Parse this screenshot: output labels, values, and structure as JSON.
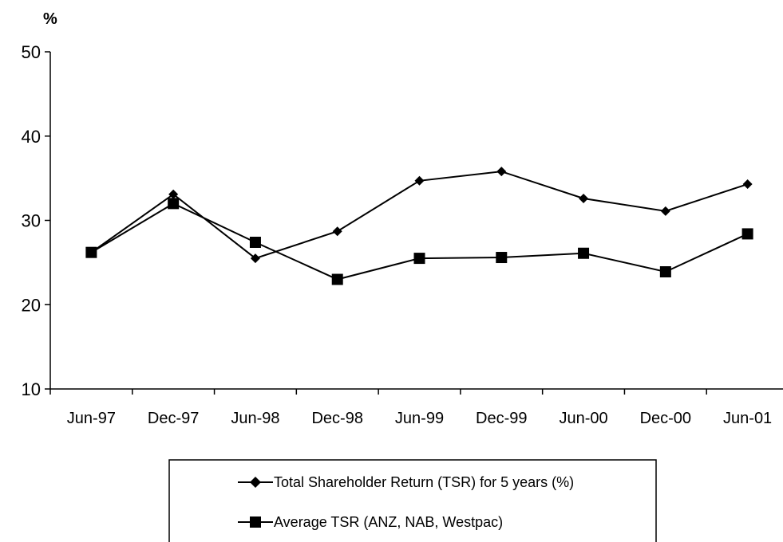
{
  "chart_data": {
    "type": "line",
    "y_unit_label": "%",
    "categories": [
      "Jun-97",
      "Dec-97",
      "Jun-98",
      "Dec-98",
      "Jun-99",
      "Dec-99",
      "Jun-00",
      "Dec-00",
      "Jun-01"
    ],
    "ylim": [
      10,
      50
    ],
    "yticks": [
      10,
      20,
      30,
      40,
      50
    ],
    "grid": false,
    "legend_position": "bottom",
    "series": [
      {
        "name": "Total Shareholder Return (TSR) for 5 years (%)",
        "marker": "diamond",
        "color": "#000000",
        "values": [
          26.2,
          33.1,
          25.5,
          28.7,
          34.7,
          35.8,
          32.6,
          31.1,
          34.3
        ]
      },
      {
        "name": "Average TSR (ANZ, NAB, Westpac)",
        "marker": "square",
        "color": "#000000",
        "values": [
          26.2,
          32.0,
          27.4,
          23.0,
          25.5,
          25.6,
          26.1,
          23.9,
          28.4
        ]
      }
    ]
  }
}
